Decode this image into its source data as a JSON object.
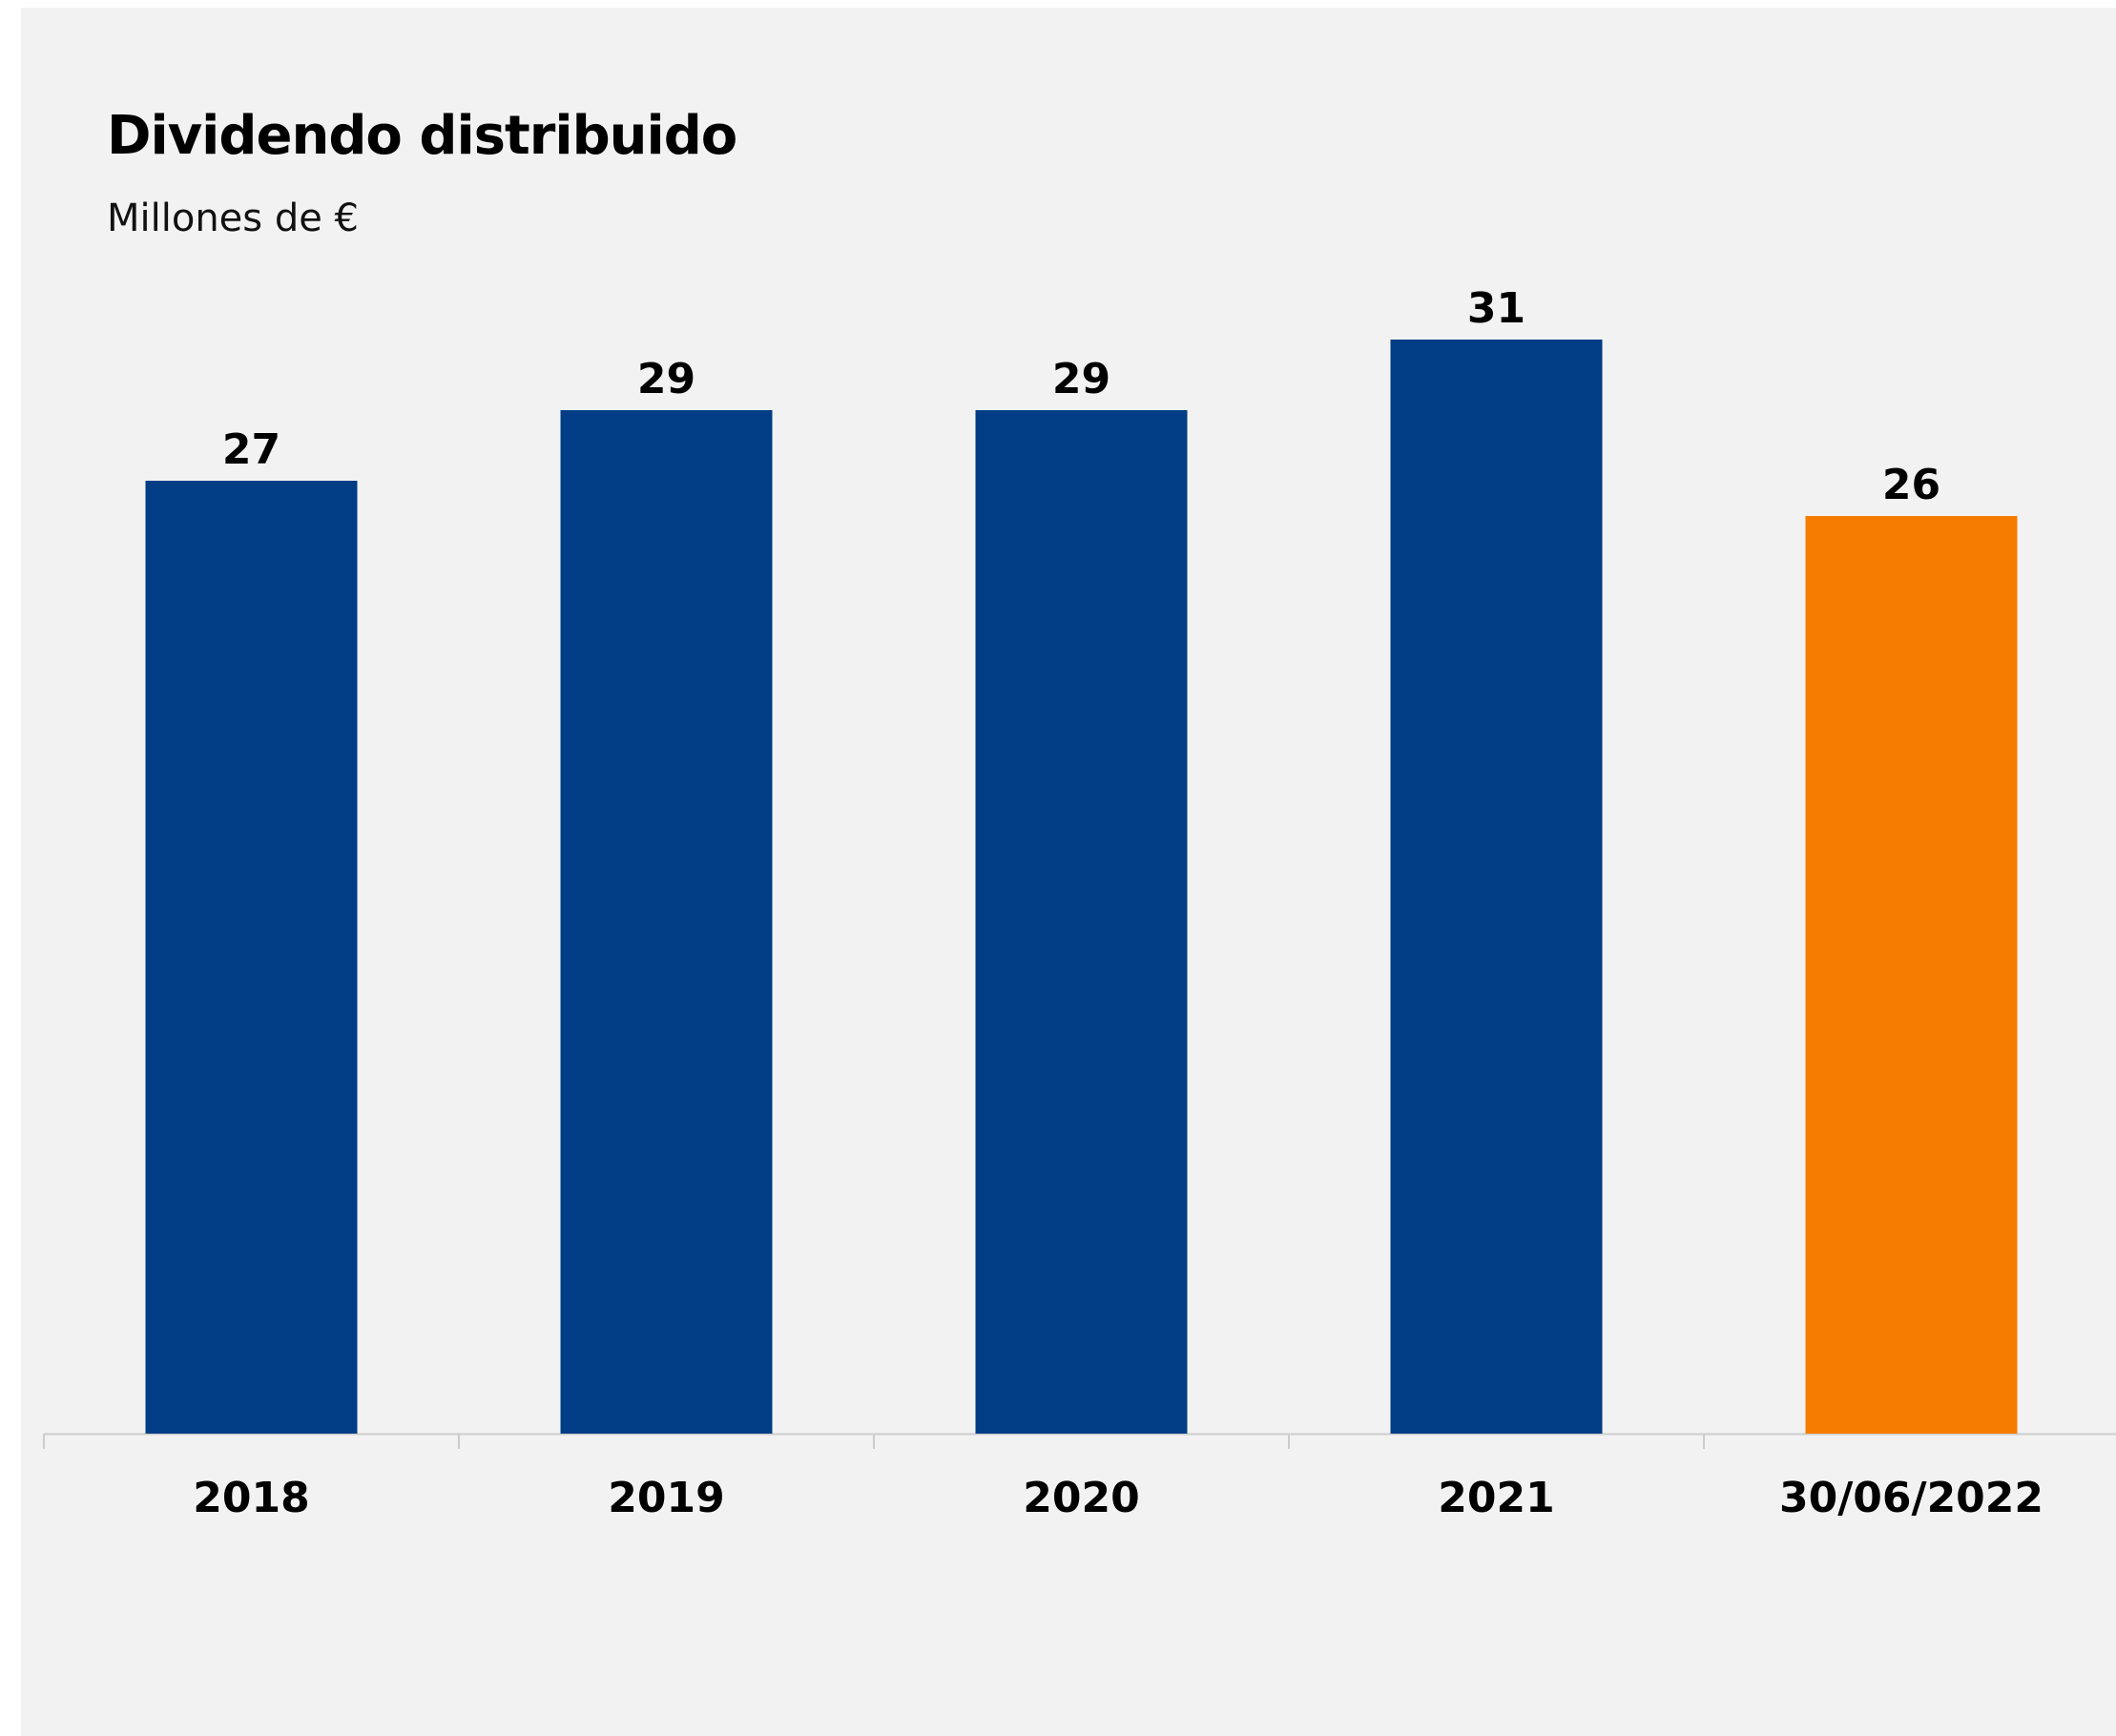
{
  "chart_data": {
    "type": "bar",
    "title": "Dividendo distribuido",
    "subtitle": "Millones de €",
    "categories": [
      "2018",
      "2019",
      "2020",
      "2021",
      "30/06/2022"
    ],
    "values": [
      27,
      29,
      29,
      31,
      26
    ],
    "ylim": [
      0,
      31
    ],
    "grid": false,
    "colors": [
      "#003d85",
      "#003d85",
      "#003d85",
      "#003d85",
      "#f57c00"
    ],
    "axis_color": "#cccccc"
  }
}
